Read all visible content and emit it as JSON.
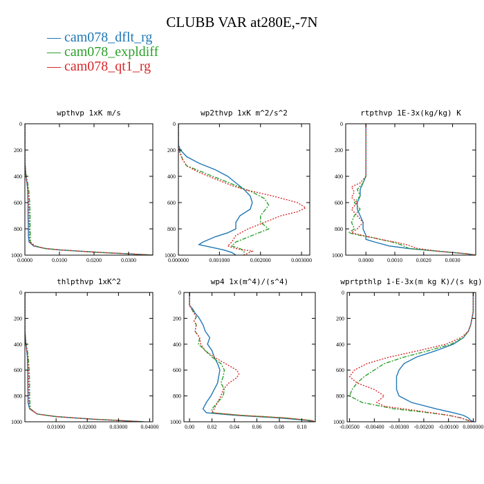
{
  "title": "CLUBB VAR at280E,-7N",
  "legend": [
    {
      "label": "cam078_dflt_rg",
      "color": "#1f77b4"
    },
    {
      "label": "cam078_expldiff",
      "color": "#2ca02c"
    },
    {
      "label": "cam078_qt1_rg",
      "color": "#d62728"
    }
  ],
  "chart_data": [
    {
      "type": "line",
      "title": "wpthvp   1xK m/s",
      "xlim": [
        0,
        0.037
      ],
      "ylim": [
        0,
        1000
      ],
      "xticks": [
        0,
        0.01,
        0.02,
        0.03
      ],
      "xtick_labels": [
        "0.0000",
        "0.0100",
        "0.0200",
        "0.0300"
      ],
      "yticks": [
        0,
        200,
        400,
        600,
        800,
        1000
      ],
      "ytick_labels": [
        "0",
        "200",
        "400",
        "600",
        "800",
        "1000"
      ],
      "series": [
        {
          "name": "cam078_dflt_rg",
          "y": [
            0,
            200,
            300,
            400,
            450,
            500,
            600,
            700,
            800,
            850,
            900,
            930,
            950,
            960,
            970,
            980,
            990,
            1000
          ],
          "x": [
            0,
            0,
            0,
            0.0003,
            0.0006,
            0.0008,
            0.0009,
            0.0009,
            0.001,
            0.001,
            0.0012,
            0.0025,
            0.006,
            0.01,
            0.016,
            0.022,
            0.03,
            0.037
          ]
        },
        {
          "name": "cam078_expldiff",
          "y": [
            0,
            200,
            300,
            400,
            450,
            500,
            600,
            700,
            800,
            850,
            900,
            930,
            950,
            960,
            970,
            980,
            990,
            1000
          ],
          "x": [
            0,
            0,
            0,
            0.0004,
            0.0008,
            0.0011,
            0.0014,
            0.0015,
            0.0015,
            0.0016,
            0.0016,
            0.003,
            0.006,
            0.01,
            0.016,
            0.022,
            0.03,
            0.037
          ]
        },
        {
          "name": "cam078_qt1_rg",
          "y": [
            0,
            200,
            300,
            400,
            450,
            500,
            600,
            700,
            800,
            850,
            900,
            930,
            950,
            960,
            970,
            980,
            990,
            1000
          ],
          "x": [
            0,
            0,
            0,
            0.0003,
            0.0006,
            0.0009,
            0.0011,
            0.0012,
            0.0013,
            0.0013,
            0.0014,
            0.0028,
            0.006,
            0.01,
            0.016,
            0.022,
            0.03,
            0.037
          ]
        }
      ]
    },
    {
      "type": "line",
      "title": "wp2thvp   1xK m^2/s^2",
      "xlim": [
        0,
        0.0032
      ],
      "ylim": [
        0,
        1000
      ],
      "xticks": [
        0,
        0.001,
        0.002,
        0.003
      ],
      "xtick_labels": [
        "0.000000",
        "0.001000",
        "0.002000",
        "0.003000"
      ],
      "yticks": [
        0,
        200,
        400,
        600,
        800,
        1000
      ],
      "ytick_labels": [
        "0",
        "200",
        "400",
        "600",
        "800",
        "1000"
      ],
      "series": [
        {
          "name": "cam078_dflt_rg",
          "y": [
            0,
            160,
            200,
            250,
            300,
            350,
            400,
            450,
            500,
            550,
            600,
            650,
            700,
            750,
            800,
            830,
            860,
            900,
            920,
            940,
            960,
            980,
            1000
          ],
          "x": [
            0,
            0,
            5e-05,
            0.0002,
            0.0005,
            0.0009,
            0.0012,
            0.0014,
            0.0016,
            0.00175,
            0.0018,
            0.00175,
            0.0015,
            0.0014,
            0.0014,
            0.0012,
            0.0009,
            0.0006,
            0.0005,
            0.0008,
            0.0011,
            0.0013,
            0.0014
          ]
        },
        {
          "name": "cam078_expldiff",
          "y": [
            0,
            180,
            220,
            270,
            320,
            370,
            420,
            470,
            520,
            570,
            620,
            660,
            700,
            750,
            800,
            850,
            900,
            930,
            950,
            970,
            1000
          ],
          "x": [
            0,
            0,
            5e-05,
            0.0001,
            0.0002,
            0.0006,
            0.001,
            0.0014,
            0.0018,
            0.0021,
            0.0022,
            0.0021,
            0.002,
            0.002,
            0.0022,
            0.0018,
            0.0014,
            0.0013,
            0.0015,
            0.0016,
            0.0016
          ]
        },
        {
          "name": "cam078_qt1_rg",
          "y": [
            0,
            180,
            220,
            270,
            320,
            370,
            420,
            470,
            500,
            550,
            600,
            640,
            670,
            700,
            750,
            800,
            850,
            900,
            930,
            950,
            970,
            985,
            1000
          ],
          "x": [
            0,
            0,
            3e-05,
            0.0001,
            0.0002,
            0.0005,
            0.0009,
            0.0013,
            0.0016,
            0.0023,
            0.0029,
            0.0031,
            0.0029,
            0.0025,
            0.0021,
            0.0017,
            0.0014,
            0.0013,
            0.0012,
            0.0014,
            0.0018,
            0.0017,
            0.0016
          ]
        }
      ]
    },
    {
      "type": "line",
      "title": "rtpthvp   1E-3x(kg/kg) K",
      "xlim": [
        -0.0007,
        0.0038
      ],
      "ylim": [
        0,
        1000
      ],
      "xticks": [
        0,
        0.001,
        0.002,
        0.003
      ],
      "xtick_labels": [
        "0.0000",
        "0.0010",
        "0.0020",
        "0.0030"
      ],
      "yticks": [
        0,
        200,
        400,
        600,
        800,
        1000
      ],
      "ytick_labels": [
        "0",
        "200",
        "400",
        "600",
        "800",
        "1000"
      ],
      "series": [
        {
          "name": "cam078_dflt_rg",
          "y": [
            0,
            400,
            450,
            500,
            550,
            600,
            650,
            700,
            750,
            800,
            850,
            880,
            900,
            930,
            950,
            970,
            990,
            1000
          ],
          "x": [
            0,
            0,
            -0.0001,
            -0.0002,
            -0.0002,
            -0.0003,
            -0.0003,
            -0.0002,
            -0.0001,
            -0.0001,
            0,
            0,
            0.0003,
            0.0008,
            0.0015,
            0.0025,
            0.0035,
            0.0038
          ]
        },
        {
          "name": "cam078_expldiff",
          "y": [
            0,
            400,
            450,
            500,
            550,
            600,
            650,
            700,
            750,
            800,
            830,
            850,
            870,
            900,
            920,
            950,
            970,
            990,
            1000
          ],
          "x": [
            0,
            0,
            -0.0001,
            -0.0003,
            -0.0002,
            -0.0004,
            -0.0002,
            -0.0004,
            -0.0005,
            -0.0004,
            -0.0006,
            -0.0002,
            0.0003,
            0.0009,
            0.0012,
            0.0015,
            0.0025,
            0.0035,
            0.0038
          ]
        },
        {
          "name": "cam078_qt1_rg",
          "y": [
            0,
            400,
            450,
            480,
            520,
            560,
            600,
            650,
            700,
            750,
            800,
            830,
            850,
            880,
            900,
            920,
            950,
            970,
            990,
            1000
          ],
          "x": [
            0,
            0,
            -0.0002,
            -0.0005,
            -0.0004,
            -0.0005,
            -0.0003,
            -0.0005,
            -0.0003,
            -0.0001,
            -0.0003,
            -0.0005,
            -0.0001,
            0.0005,
            0.001,
            0.0014,
            0.0018,
            0.0025,
            0.0035,
            0.0038
          ]
        }
      ]
    },
    {
      "type": "line",
      "title": "thlpthvp   1xK^2",
      "xlim": [
        0,
        0.041
      ],
      "ylim": [
        0,
        1000
      ],
      "xticks": [
        0.01,
        0.02,
        0.03,
        0.04
      ],
      "xtick_labels": [
        "0.01000",
        "0.02000",
        "0.03000",
        "0.04000"
      ],
      "yticks": [
        0,
        200,
        400,
        600,
        800,
        1000
      ],
      "ytick_labels": [
        "0",
        "200",
        "400",
        "600",
        "800",
        "1000"
      ],
      "series": [
        {
          "name": "cam078_dflt_rg",
          "y": [
            0,
            200,
            300,
            400,
            450,
            500,
            600,
            700,
            800,
            850,
            900,
            940,
            960,
            970,
            980,
            990,
            1000
          ],
          "x": [
            0,
            0,
            0,
            0.0003,
            0.0006,
            0.0008,
            0.0009,
            0.0009,
            0.001,
            0.001,
            0.0015,
            0.004,
            0.01,
            0.016,
            0.022,
            0.03,
            0.038
          ]
        },
        {
          "name": "cam078_expldiff",
          "y": [
            0,
            200,
            300,
            400,
            450,
            500,
            600,
            700,
            800,
            850,
            900,
            940,
            960,
            970,
            980,
            990,
            1000
          ],
          "x": [
            0,
            0,
            0,
            0.0004,
            0.0008,
            0.0011,
            0.0014,
            0.0015,
            0.0015,
            0.0016,
            0.0018,
            0.004,
            0.01,
            0.016,
            0.022,
            0.03,
            0.038
          ]
        },
        {
          "name": "cam078_qt1_rg",
          "y": [
            0,
            200,
            300,
            400,
            450,
            500,
            600,
            700,
            800,
            850,
            900,
            940,
            960,
            970,
            980,
            990,
            1000
          ],
          "x": [
            0,
            0,
            0,
            0.0003,
            0.0006,
            0.0009,
            0.0011,
            0.0012,
            0.0013,
            0.0013,
            0.0016,
            0.004,
            0.01,
            0.016,
            0.022,
            0.03,
            0.038
          ]
        }
      ]
    },
    {
      "type": "line",
      "title": "wp4   1x(m^4)/(s^4)",
      "xlim": [
        -0.005,
        0.112
      ],
      "ylim": [
        0,
        1000
      ],
      "xticks": [
        0,
        0.02,
        0.04,
        0.06,
        0.08,
        0.1
      ],
      "xtick_labels": [
        "0.00",
        "0.02",
        "0.04",
        "0.06",
        "0.08",
        "0.10"
      ],
      "yticks": [
        0,
        200,
        400,
        600,
        800,
        1000
      ],
      "ytick_labels": [
        "0",
        "200",
        "400",
        "600",
        "800",
        "1000"
      ],
      "series": [
        {
          "name": "cam078_dflt_rg",
          "y": [
            0,
            100,
            130,
            160,
            190,
            220,
            250,
            300,
            350,
            400,
            450,
            500,
            550,
            600,
            650,
            700,
            750,
            800,
            850,
            900,
            930,
            950,
            970,
            990,
            1000
          ],
          "x": [
            0,
            0,
            0.003,
            0.005,
            0.008,
            0.01,
            0.012,
            0.014,
            0.018,
            0.016,
            0.02,
            0.022,
            0.025,
            0.027,
            0.026,
            0.025,
            0.022,
            0.019,
            0.015,
            0.012,
            0.015,
            0.04,
            0.08,
            0.105,
            0.11
          ]
        },
        {
          "name": "cam078_expldiff",
          "y": [
            0,
            100,
            130,
            160,
            190,
            220,
            250,
            300,
            350,
            400,
            450,
            500,
            550,
            600,
            650,
            700,
            750,
            800,
            850,
            900,
            930,
            950,
            970,
            990,
            1000
          ],
          "x": [
            0,
            0,
            0.002,
            0.004,
            0.006,
            0.004,
            0.006,
            0.005,
            0.009,
            0.008,
            0.014,
            0.02,
            0.028,
            0.031,
            0.03,
            0.028,
            0.031,
            0.03,
            0.025,
            0.02,
            0.02,
            0.045,
            0.085,
            0.108,
            0.112
          ]
        },
        {
          "name": "cam078_qt1_rg",
          "y": [
            0,
            100,
            130,
            160,
            190,
            220,
            250,
            300,
            350,
            400,
            450,
            500,
            550,
            600,
            630,
            660,
            700,
            750,
            800,
            850,
            900,
            930,
            950,
            970,
            990,
            1000
          ],
          "x": [
            0,
            0,
            0.002,
            0.004,
            0.006,
            0.004,
            0.006,
            0.005,
            0.009,
            0.01,
            0.014,
            0.022,
            0.032,
            0.042,
            0.044,
            0.042,
            0.035,
            0.03,
            0.028,
            0.025,
            0.022,
            0.02,
            0.045,
            0.085,
            0.108,
            0.112
          ]
        }
      ]
    },
    {
      "type": "line",
      "title": "wprtpthlp   1-E-3x(m kg K)/(s kg)",
      "xlim": [
        -0.0051,
        0.0001
      ],
      "ylim": [
        0,
        1000
      ],
      "xticks": [
        -0.005,
        -0.004,
        -0.003,
        -0.002,
        -0.001,
        0
      ],
      "xtick_labels": [
        "-0.00500",
        "-0.00400",
        "-0.00300",
        "-0.00200",
        "-0.00100",
        "0.000000"
      ],
      "yticks": [
        0,
        200,
        400,
        600,
        800,
        1000
      ],
      "ytick_labels": [
        "0",
        "200",
        "400",
        "600",
        "800",
        "1000"
      ],
      "series": [
        {
          "name": "cam078_dflt_rg",
          "y": [
            0,
            150,
            250,
            300,
            350,
            400,
            450,
            500,
            550,
            600,
            650,
            700,
            750,
            800,
            850,
            900,
            930,
            950,
            970,
            990,
            1000
          ],
          "x": [
            0,
            0,
            -0.0001,
            -0.0002,
            -0.0004,
            -0.0008,
            -0.0015,
            -0.0023,
            -0.0028,
            -0.003,
            -0.0031,
            -0.0031,
            -0.0031,
            -0.003,
            -0.0025,
            -0.0015,
            -0.0008,
            -0.0004,
            -0.0002,
            -0.0001,
            0
          ]
        },
        {
          "name": "cam078_expldiff",
          "y": [
            0,
            150,
            250,
            300,
            350,
            400,
            450,
            500,
            550,
            600,
            650,
            700,
            750,
            800,
            850,
            900,
            930,
            950,
            970,
            990,
            1000
          ],
          "x": [
            0,
            0,
            -0.0001,
            -0.0002,
            -0.0004,
            -0.0009,
            -0.0018,
            -0.0028,
            -0.0036,
            -0.004,
            -0.0044,
            -0.0047,
            -0.0049,
            -0.005,
            -0.0045,
            -0.0032,
            -0.0018,
            -0.001,
            -0.0005,
            -0.0002,
            0
          ]
        },
        {
          "name": "cam078_qt1_rg",
          "y": [
            0,
            150,
            250,
            300,
            350,
            400,
            450,
            500,
            550,
            600,
            650,
            700,
            750,
            800,
            850,
            880,
            900,
            930,
            950,
            970,
            990,
            1000
          ],
          "x": [
            0,
            0,
            -0.0001,
            -0.0002,
            -0.0005,
            -0.0011,
            -0.0022,
            -0.0034,
            -0.0043,
            -0.0048,
            -0.005,
            -0.0047,
            -0.004,
            -0.0036,
            -0.0039,
            -0.0036,
            -0.0028,
            -0.0017,
            -0.001,
            -0.0005,
            -0.0002,
            0
          ]
        }
      ]
    }
  ]
}
